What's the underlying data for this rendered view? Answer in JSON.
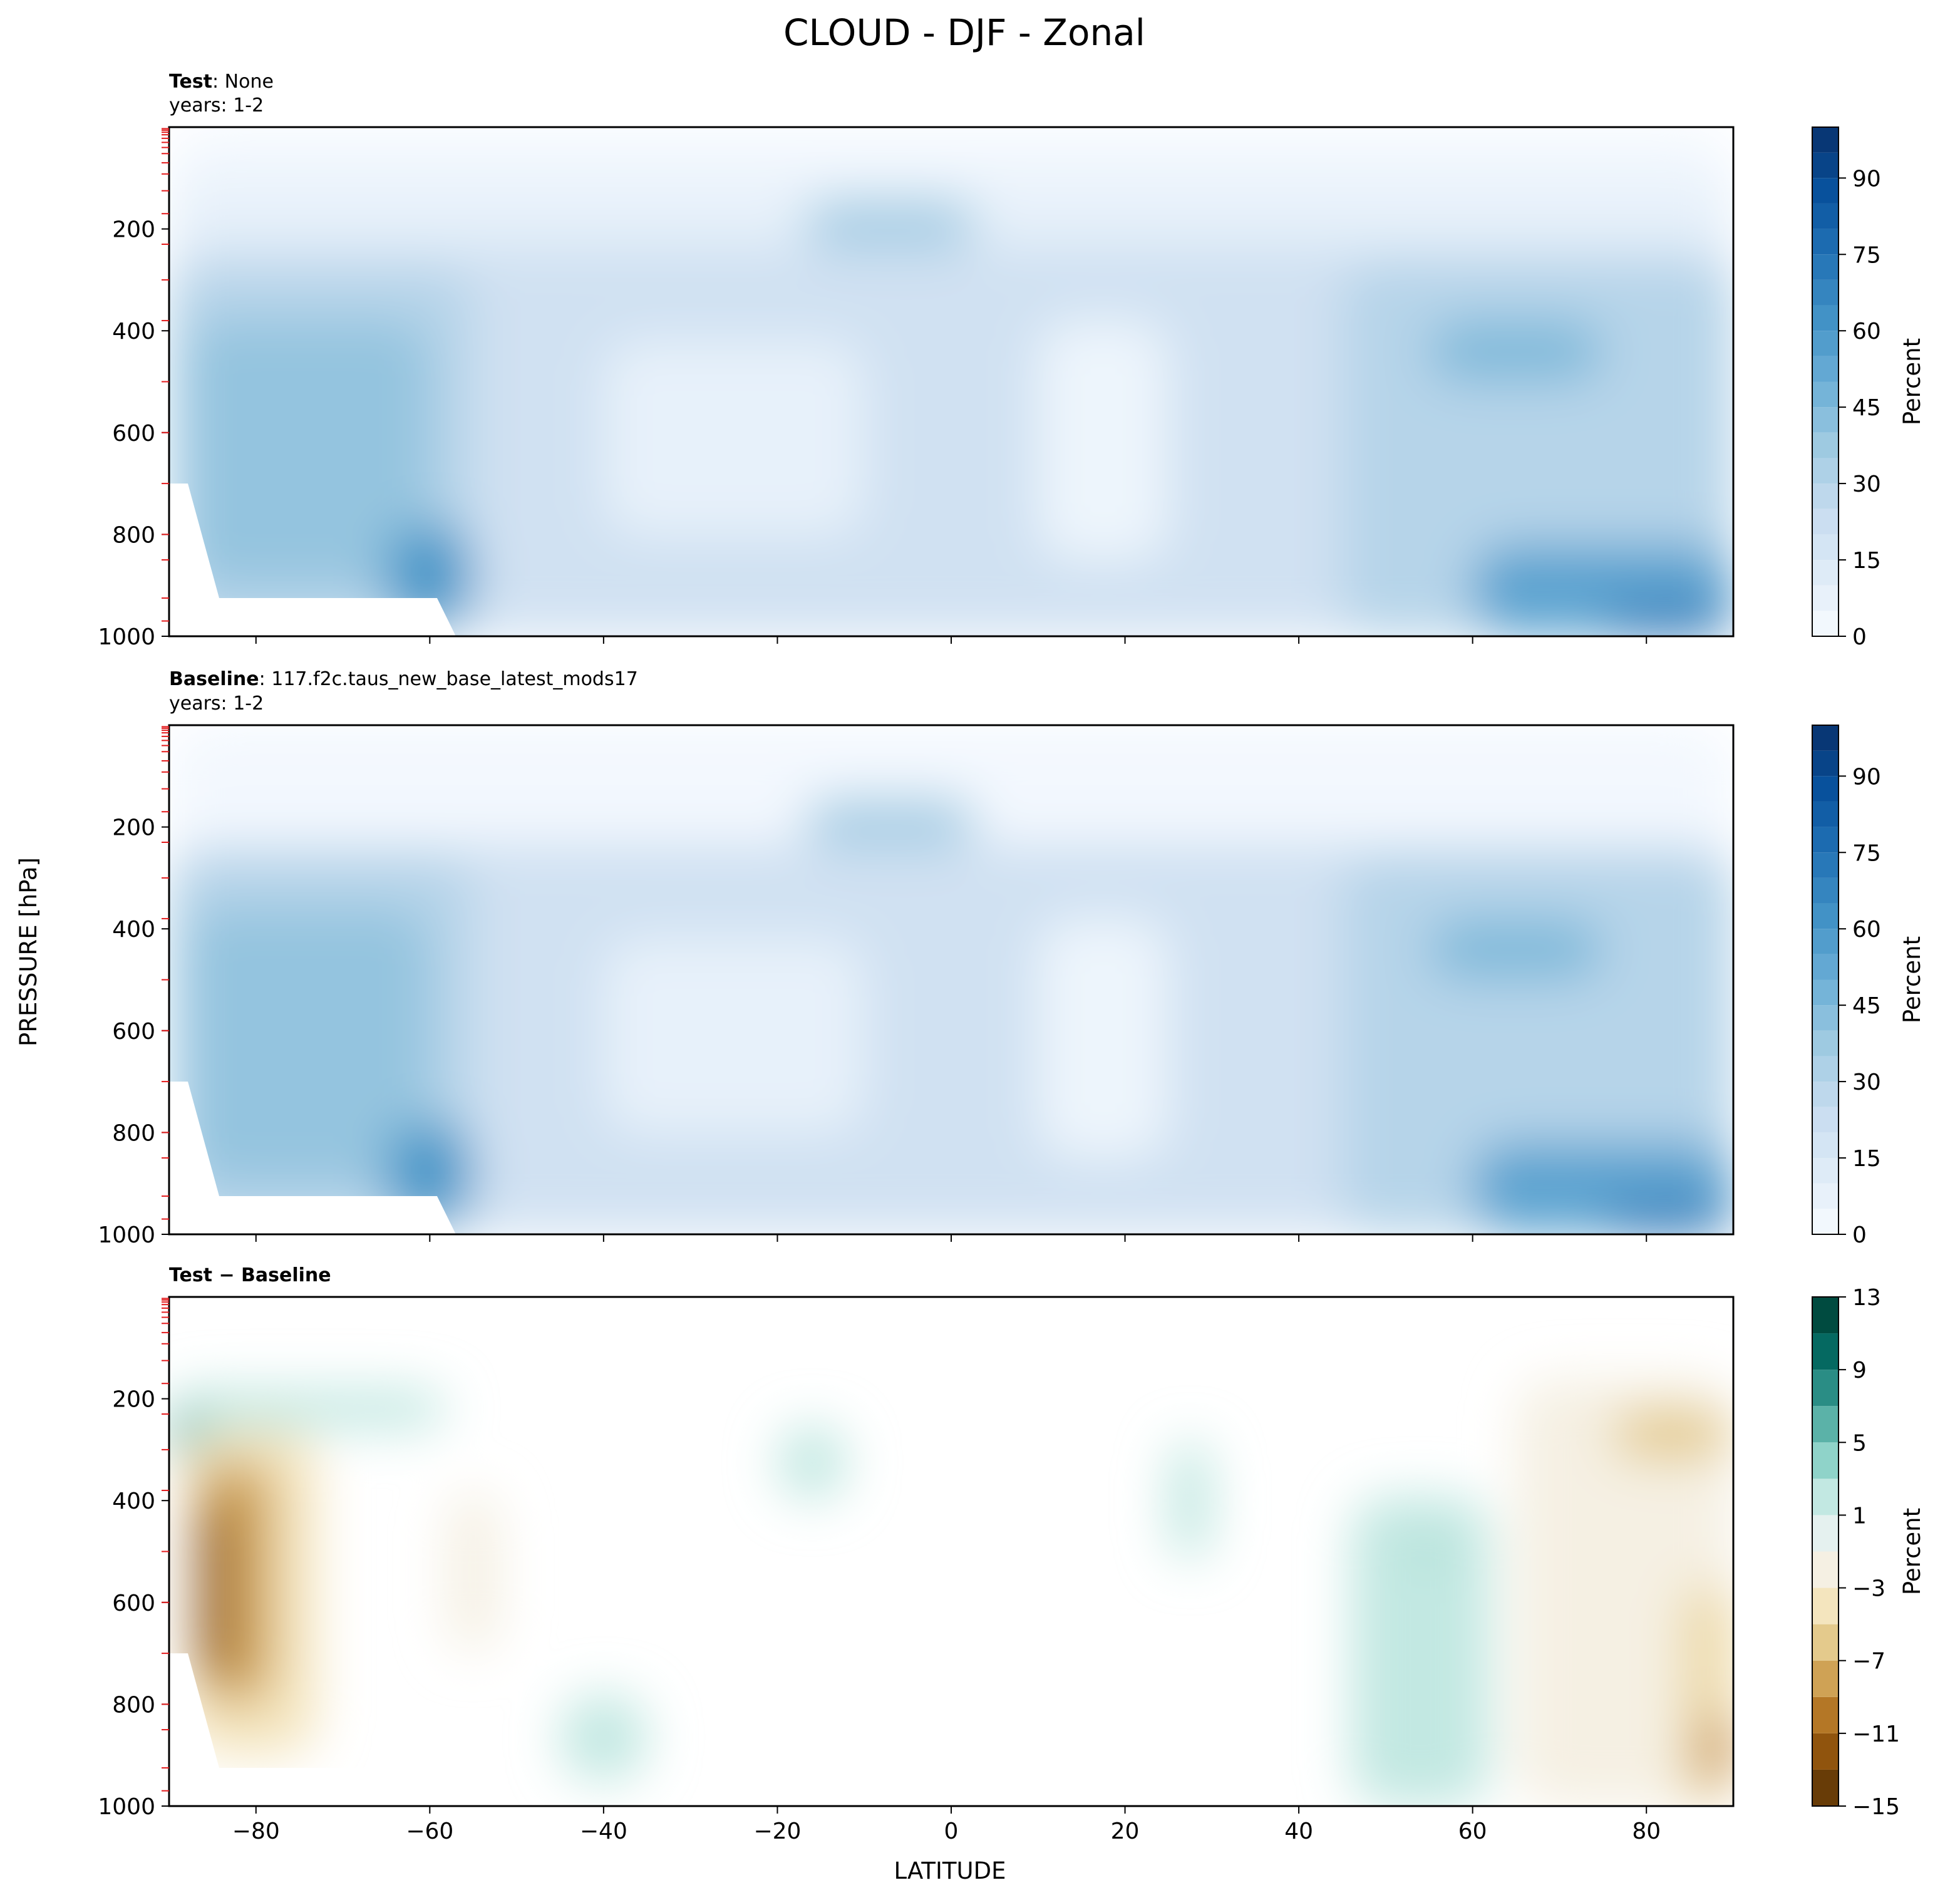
{
  "figure": {
    "title": "CLOUD - DJF - Zonal",
    "shared_ylabel": "PRESSURE [hPa]",
    "shared_xlabel": "LATITUDE"
  },
  "chart_data": [
    {
      "type": "heatmap",
      "panel": "test",
      "title_bold": "Test",
      "title_rest": ": None",
      "subtitle": "years: 1-2",
      "x_ticks": [
        -80,
        -60,
        -40,
        -20,
        0,
        20,
        40,
        60,
        80
      ],
      "x_tick_labels": [
        "−80",
        "−60",
        "−40",
        "−20",
        "0",
        "20",
        "40",
        "60",
        "80"
      ],
      "xlim": [
        -90,
        90
      ],
      "y_ticks": [
        200,
        400,
        600,
        800,
        1000
      ],
      "ylim": [
        0,
        1000
      ],
      "y_inverted": true,
      "colorbar": {
        "label": "Percent",
        "cmap": "Blues",
        "ticks": [
          0,
          15,
          30,
          45,
          60,
          75,
          90
        ],
        "levels": [
          0,
          5,
          10,
          15,
          20,
          25,
          30,
          35,
          40,
          45,
          50,
          55,
          60,
          65,
          70,
          75,
          80,
          85,
          90,
          95,
          100
        ]
      },
      "regions": [
        {
          "lat": [
            -90,
            90
          ],
          "p": [
            0,
            1000
          ],
          "value": 2
        },
        {
          "lat": [
            -90,
            90
          ],
          "p": [
            100,
            1000
          ],
          "value": 8
        },
        {
          "lat": [
            -90,
            90
          ],
          "p": [
            230,
            1000
          ],
          "value": 20
        },
        {
          "lat": [
            -90,
            -55
          ],
          "p": [
            280,
            1000
          ],
          "value": 30
        },
        {
          "lat": [
            -88,
            -60
          ],
          "p": [
            380,
            900
          ],
          "value": 40
        },
        {
          "lat": [
            -65,
            -55
          ],
          "p": [
            780,
            980
          ],
          "value": 60
        },
        {
          "lat": [
            -17,
            3
          ],
          "p": [
            140,
            240
          ],
          "value": 35
        },
        {
          "lat": [
            -40,
            -10
          ],
          "p": [
            420,
            800
          ],
          "value": 8
        },
        {
          "lat": [
            10,
            25
          ],
          "p": [
            380,
            850
          ],
          "value": 5
        },
        {
          "lat": [
            45,
            90
          ],
          "p": [
            270,
            1000
          ],
          "value": 30
        },
        {
          "lat": [
            55,
            75
          ],
          "p": [
            380,
            500
          ],
          "value": 45
        },
        {
          "lat": [
            60,
            90
          ],
          "p": [
            820,
            1000
          ],
          "value": 55
        },
        {
          "lat": [
            75,
            90
          ],
          "p": [
            940,
            1000
          ],
          "value": 75
        }
      ],
      "masked_region": {
        "lat": [
          -90,
          -57
        ],
        "p": [
          700,
          1000
        ]
      }
    },
    {
      "type": "heatmap",
      "panel": "baseline",
      "title_bold": "Baseline",
      "title_rest": ": 117.f2c.taus_new_base_latest_mods17",
      "subtitle": "years: 1-2",
      "x_ticks": [
        -80,
        -60,
        -40,
        -20,
        0,
        20,
        40,
        60,
        80
      ],
      "x_tick_labels": [
        "−80",
        "−60",
        "−40",
        "−20",
        "0",
        "20",
        "40",
        "60",
        "80"
      ],
      "xlim": [
        -90,
        90
      ],
      "y_ticks": [
        200,
        400,
        600,
        800,
        1000
      ],
      "ylim": [
        0,
        1000
      ],
      "y_inverted": true,
      "colorbar": {
        "label": "Percent",
        "cmap": "Blues",
        "ticks": [
          0,
          15,
          30,
          45,
          60,
          75,
          90
        ],
        "levels": [
          0,
          5,
          10,
          15,
          20,
          25,
          30,
          35,
          40,
          45,
          50,
          55,
          60,
          65,
          70,
          75,
          80,
          85,
          90,
          95,
          100
        ]
      },
      "regions": [
        {
          "lat": [
            -90,
            90
          ],
          "p": [
            0,
            1000
          ],
          "value": 2
        },
        {
          "lat": [
            -90,
            90
          ],
          "p": [
            230,
            1000
          ],
          "value": 20
        },
        {
          "lat": [
            -90,
            -55
          ],
          "p": [
            260,
            1000
          ],
          "value": 30
        },
        {
          "lat": [
            -88,
            -60
          ],
          "p": [
            360,
            900
          ],
          "value": 40
        },
        {
          "lat": [
            -65,
            -55
          ],
          "p": [
            780,
            980
          ],
          "value": 60
        },
        {
          "lat": [
            -17,
            3
          ],
          "p": [
            140,
            240
          ],
          "value": 35
        },
        {
          "lat": [
            -40,
            -10
          ],
          "p": [
            420,
            800
          ],
          "value": 8
        },
        {
          "lat": [
            10,
            25
          ],
          "p": [
            380,
            850
          ],
          "value": 5
        },
        {
          "lat": [
            45,
            90
          ],
          "p": [
            260,
            1000
          ],
          "value": 30
        },
        {
          "lat": [
            55,
            75
          ],
          "p": [
            380,
            500
          ],
          "value": 45
        },
        {
          "lat": [
            60,
            90
          ],
          "p": [
            820,
            1000
          ],
          "value": 55
        },
        {
          "lat": [
            75,
            90
          ],
          "p": [
            940,
            1000
          ],
          "value": 75
        }
      ],
      "masked_region": {
        "lat": [
          -90,
          -57
        ],
        "p": [
          700,
          1000
        ]
      }
    },
    {
      "type": "heatmap",
      "panel": "difference",
      "title_bold": "Test − Baseline",
      "x_ticks": [
        -80,
        -60,
        -40,
        -20,
        0,
        20,
        40,
        60,
        80
      ],
      "x_tick_labels": [
        "−80",
        "−60",
        "−40",
        "−20",
        "0",
        "20",
        "40",
        "60",
        "80"
      ],
      "xlim": [
        -90,
        90
      ],
      "y_ticks": [
        200,
        400,
        600,
        800,
        1000
      ],
      "ylim": [
        0,
        1000
      ],
      "y_inverted": true,
      "xlabel": "LATITUDE",
      "colorbar": {
        "label": "Percent",
        "cmap": "BrBG",
        "ticks": [
          -15,
          -11,
          -7,
          -3,
          1,
          5,
          9,
          13
        ],
        "tick_labels": [
          "−15",
          "−11",
          "−7",
          "−3",
          "1",
          "5",
          "9",
          "13"
        ],
        "levels": [
          -15,
          -13,
          -11,
          -9,
          -7,
          -5,
          -3,
          -1,
          1,
          3,
          5,
          7,
          9,
          11,
          13
        ]
      },
      "regions": [
        {
          "lat": [
            -90,
            -58
          ],
          "p": [
            180,
            260
          ],
          "value": 2
        },
        {
          "lat": [
            -90,
            -86
          ],
          "p": [
            220,
            320
          ],
          "value": 6
        },
        {
          "lat": [
            -88,
            -73
          ],
          "p": [
            260,
            900
          ],
          "value": -4
        },
        {
          "lat": [
            -87,
            -78
          ],
          "p": [
            320,
            800
          ],
          "value": -8
        },
        {
          "lat": [
            -87,
            -83
          ],
          "p": [
            400,
            750
          ],
          "value": -12
        },
        {
          "lat": [
            -58,
            -52
          ],
          "p": [
            380,
            700
          ],
          "value": -2
        },
        {
          "lat": [
            -45,
            -35
          ],
          "p": [
            780,
            950
          ],
          "value": 2
        },
        {
          "lat": [
            -20,
            -12
          ],
          "p": [
            250,
            400
          ],
          "value": 2
        },
        {
          "lat": [
            25,
            30
          ],
          "p": [
            280,
            520
          ],
          "value": 2
        },
        {
          "lat": [
            46,
            62
          ],
          "p": [
            390,
            1000
          ],
          "value": 2
        },
        {
          "lat": [
            54,
            56
          ],
          "p": [
            480,
            520
          ],
          "value": 5
        },
        {
          "lat": [
            65,
            90
          ],
          "p": [
            160,
            1000
          ],
          "value": -2
        },
        {
          "lat": [
            76,
            90
          ],
          "p": [
            220,
            320
          ],
          "value": -6
        },
        {
          "lat": [
            84,
            90
          ],
          "p": [
            560,
            1000
          ],
          "value": -5
        },
        {
          "lat": [
            86,
            90
          ],
          "p": [
            820,
            960
          ],
          "value": -9
        }
      ],
      "masked_region": {
        "lat": [
          -90,
          -57
        ],
        "p": [
          700,
          1000
        ]
      }
    }
  ]
}
